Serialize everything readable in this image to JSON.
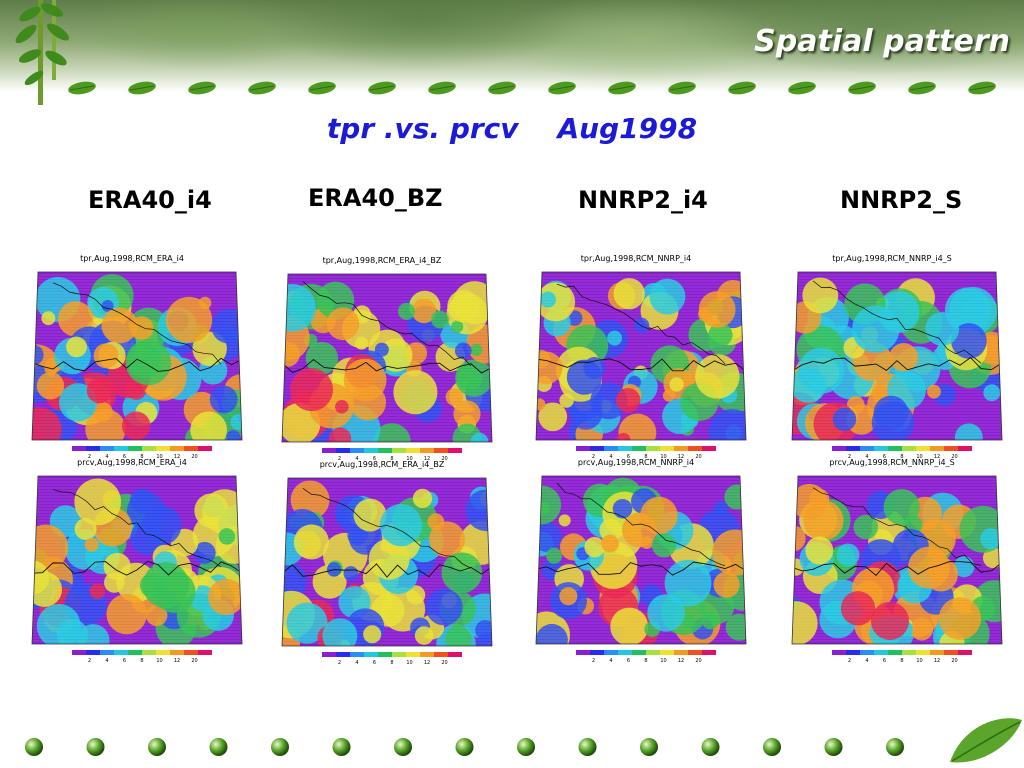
{
  "slide": {
    "title": "Spatial pattern",
    "subtitle": "tpr .vs. prcv    Aug1998"
  },
  "columns": [
    "ERA40_i4",
    "ERA40_BZ",
    "NNRP2_i4",
    "NNRP2_S"
  ],
  "panels": [
    {
      "title": "tpr,Aug,1998,RCM_ERA_i4"
    },
    {
      "title": "tpr,Aug,1998,RCM_ERA_i4_BZ"
    },
    {
      "title": "tpr,Aug,1998,RCM_NNRP_i4"
    },
    {
      "title": "tpr,Aug,1998,RCM_NNRP_i4_S"
    },
    {
      "title": "prcv,Aug,1998,RCM_ERA_i4"
    },
    {
      "title": "prcv,Aug,1998,RCM_ERA_i4_BZ"
    },
    {
      "title": "prcv,Aug,1998,RCM_NNRP_i4"
    },
    {
      "title": "prcv,Aug,1998,RCM_NNRP_i4_S"
    }
  ],
  "colorbar": {
    "labels": [
      "2",
      "4",
      "6",
      "8",
      "10",
      "12",
      "20"
    ],
    "colors": [
      "#8b1fd0",
      "#2a2af0",
      "#2a8cf5",
      "#22c8e0",
      "#20c060",
      "#a8e040",
      "#f0e030",
      "#f59a20",
      "#f05020",
      "#e0106a"
    ]
  },
  "map_colors": {
    "background": "#8b1fd0",
    "blue": "#2a4af0",
    "cyan": "#22c8e0",
    "green": "#30c050",
    "yellow": "#e8e030",
    "orange": "#f59a20",
    "red": "#e82050"
  }
}
